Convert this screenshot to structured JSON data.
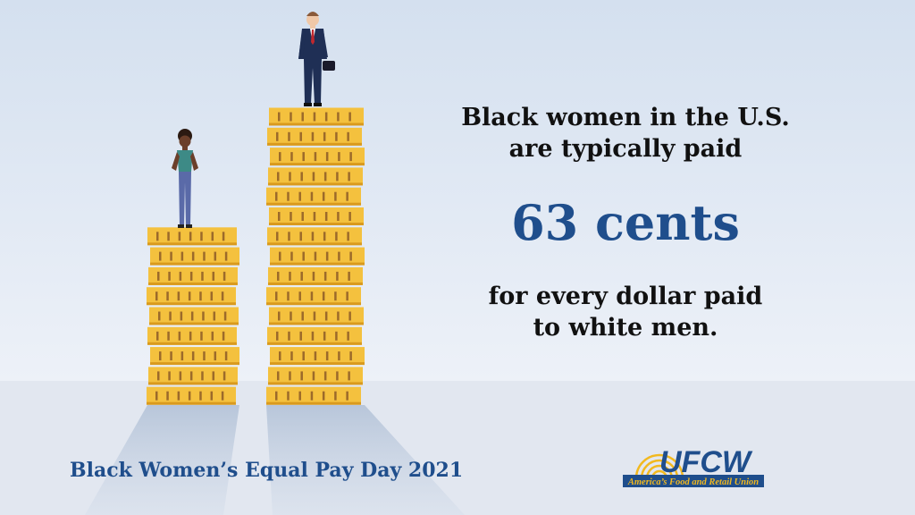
{
  "headline": {
    "lines": [
      "Black women in the U.S.",
      "are typically paid"
    ]
  },
  "statistic": "63 cents",
  "tail": {
    "lines": [
      "for every dollar paid",
      "to white men."
    ]
  },
  "footer": {
    "title": "Black Women’s Equal Pay Day 2021"
  },
  "logo": {
    "name": "UFCW",
    "tagline": "America’s Food and Retail Union"
  }
}
